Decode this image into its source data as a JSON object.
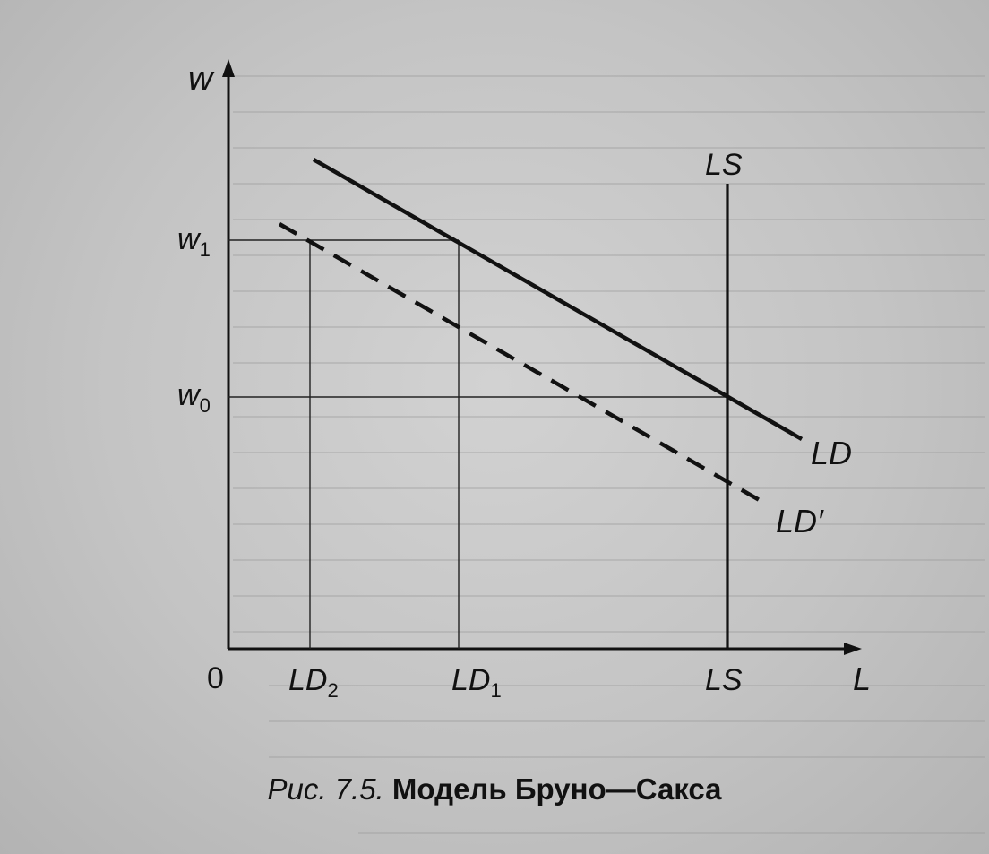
{
  "diagram": {
    "axes": {
      "y_label": "w",
      "x_label": "L",
      "origin_label": "0"
    },
    "y_ticks": {
      "w1": {
        "base": "w",
        "sub": "1"
      },
      "w0": {
        "base": "w",
        "sub": "0"
      }
    },
    "x_ticks": {
      "ld2": {
        "base": "LD",
        "sub": "2"
      },
      "ld1": {
        "base": "LD",
        "sub": "1"
      },
      "ls": "LS"
    },
    "curves": {
      "ls": "LS",
      "ld": "LD",
      "ld_prime": "LD′"
    }
  },
  "caption": {
    "figure_number": "Рис. 7.5.",
    "title": "Модель Бруно—Сакса"
  },
  "colors": {
    "ink": "#111111",
    "paper": "#c8c8c8"
  }
}
